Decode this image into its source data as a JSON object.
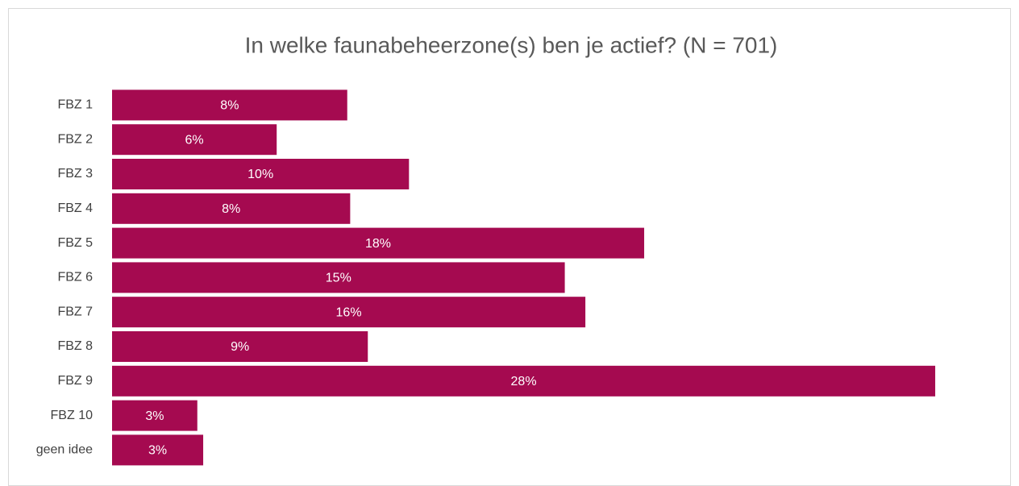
{
  "chart_data": {
    "type": "bar",
    "orientation": "horizontal",
    "title": "In welke faunabeheerzone(s) ben je actief? (N = 701)",
    "categories": [
      "FBZ 1",
      "FBZ 2",
      "FBZ 3",
      "FBZ 4",
      "FBZ 5",
      "FBZ 6",
      "FBZ 7",
      "FBZ 8",
      "FBZ 9",
      "FBZ 10",
      "geen idee"
    ],
    "values": [
      8.0,
      5.6,
      10.1,
      8.1,
      18.1,
      15.4,
      16.1,
      8.7,
      28.0,
      2.9,
      3.1
    ],
    "value_labels": [
      "8%",
      "6%",
      "10%",
      "8%",
      "18%",
      "15%",
      "16%",
      "9%",
      "28%",
      "3%",
      "3%"
    ],
    "color": "#a50a50",
    "xlim": [
      0,
      30
    ]
  }
}
